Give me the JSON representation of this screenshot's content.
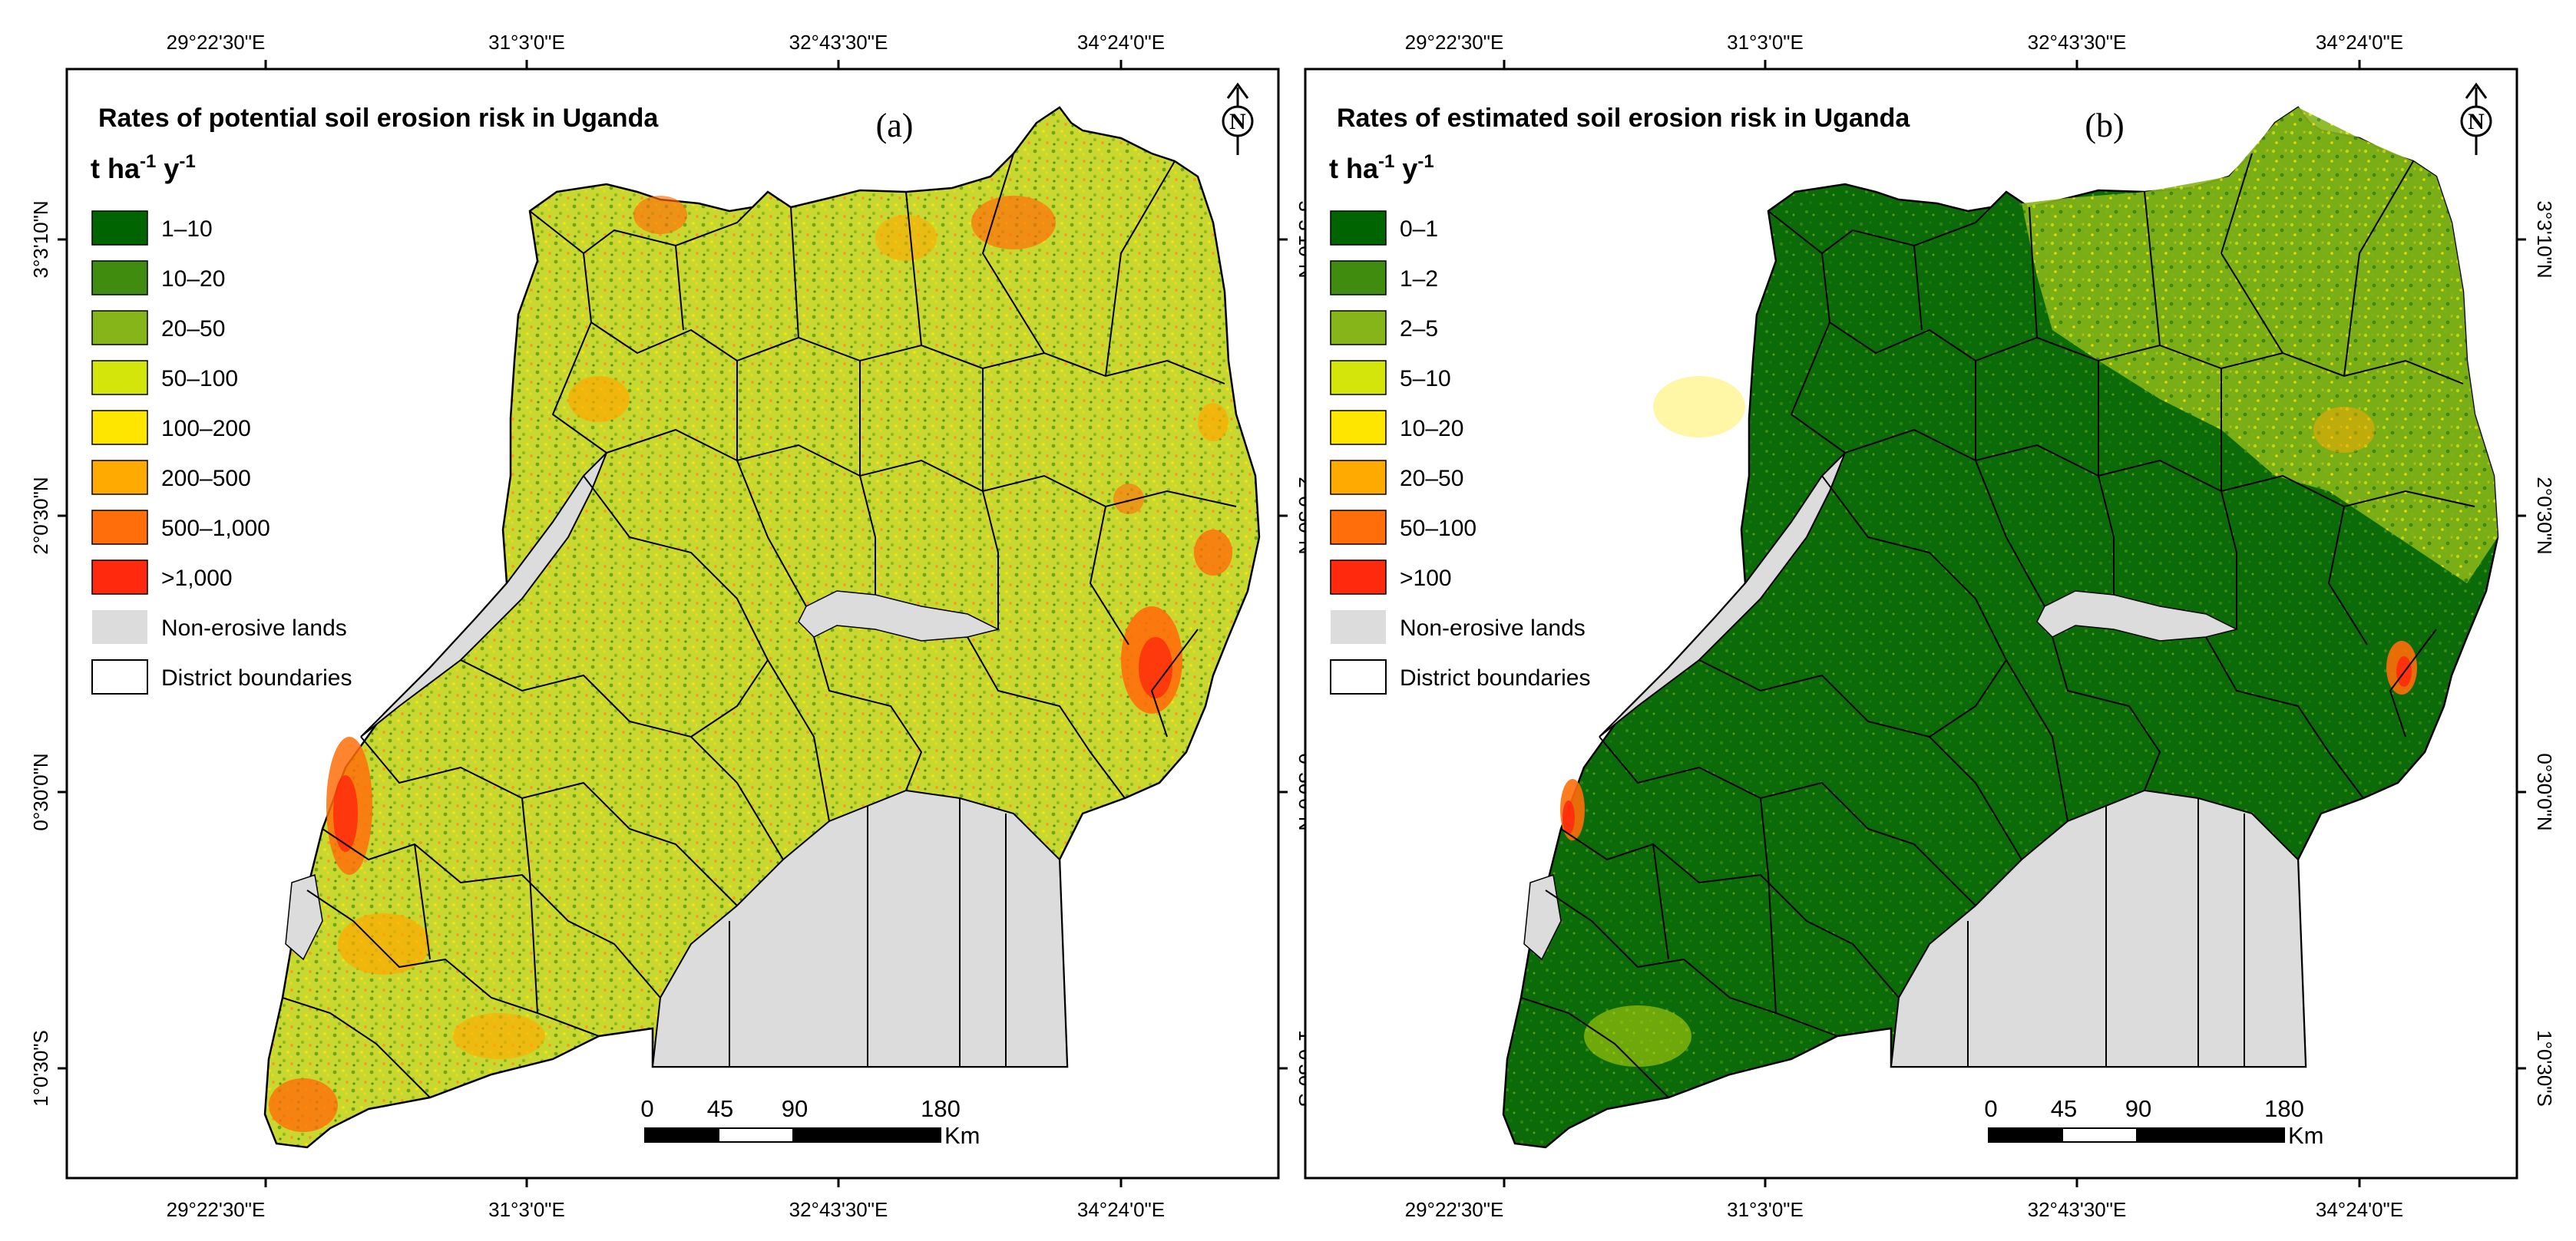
{
  "lon_ticks": [
    "29°22'30\"E",
    "31°3'0\"E",
    "32°43'30\"E",
    "34°24'0\"E"
  ],
  "lat_ticks": [
    "3°3'10\"N",
    "2°0'30\"N",
    "0°30'0\"N",
    "1°0'30\"S"
  ],
  "panels": [
    {
      "title": "Rates of potential soil erosion risk in Uganda",
      "letter": "(a)",
      "unit": {
        "base": "t  ha",
        "exp1": "-1",
        "mid": " y",
        "exp2": "-1"
      },
      "legend": [
        {
          "label": "1–10",
          "color": "#006400"
        },
        {
          "label": "10–20",
          "color": "#3f8c0e"
        },
        {
          "label": "20–50",
          "color": "#86b519"
        },
        {
          "label": "50–100",
          "color": "#d4e50c"
        },
        {
          "label": "100–200",
          "color": "#ffe600"
        },
        {
          "label": "200–500",
          "color": "#ffaa00"
        },
        {
          "label": "500–1,000",
          "color": "#ff6e0a"
        },
        {
          "label": ">1,000",
          "color": "#ff2a0d"
        },
        {
          "label": "Non-erosive lands",
          "color": "#dcdcdc"
        },
        {
          "label": "District boundaries",
          "color": "#ffffff"
        }
      ],
      "map_fill": "#c9d830",
      "scale_labels": [
        "0",
        "45",
        "90",
        "180"
      ],
      "scale_unit": "Km",
      "north_letter": "N"
    },
    {
      "title": "Rates of estimated soil erosion risk in Uganda",
      "letter": "(b)",
      "unit": {
        "base": "t  ha",
        "exp1": "-1",
        "mid": " y",
        "exp2": "-1"
      },
      "legend": [
        {
          "label": "0–1",
          "color": "#006400"
        },
        {
          "label": "1–2",
          "color": "#3f8c0e"
        },
        {
          "label": "2–5",
          "color": "#86b519"
        },
        {
          "label": "5–10",
          "color": "#d4e50c"
        },
        {
          "label": "10–20",
          "color": "#ffe600"
        },
        {
          "label": "20–50",
          "color": "#ffaa00"
        },
        {
          "label": "50–100",
          "color": "#ff6e0a"
        },
        {
          "label": ">100",
          "color": "#ff2a0d"
        },
        {
          "label": "Non-erosive lands",
          "color": "#dcdcdc"
        },
        {
          "label": "District boundaries",
          "color": "#ffffff"
        }
      ],
      "map_fill": "#0b6b08",
      "scale_labels": [
        "0",
        "45",
        "90",
        "180"
      ],
      "scale_unit": "Km",
      "north_letter": "N"
    }
  ]
}
